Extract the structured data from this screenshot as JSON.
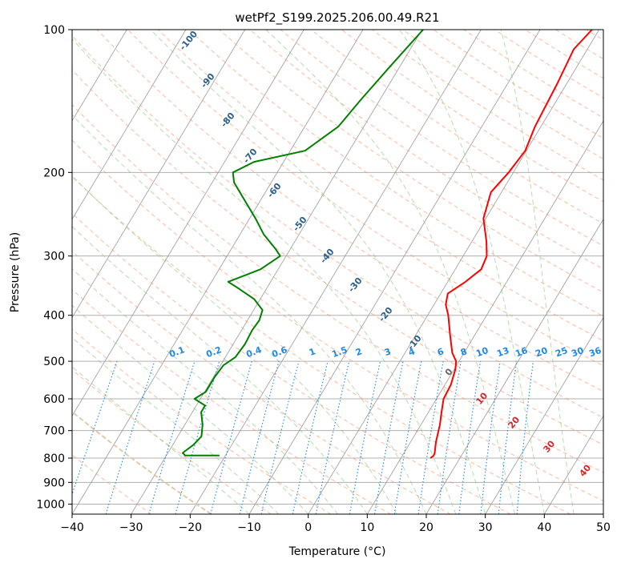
{
  "chart_data": {
    "type": "line",
    "title": "wetPf2_S199.2025.206.00.49.R21",
    "xlabel": "Temperature (°C)",
    "ylabel": "Pressure (hPa)",
    "xlim": [
      -40,
      50
    ],
    "ylim": [
      1050,
      100
    ],
    "y_scale": "log",
    "skew": true,
    "grid": true,
    "x_ticks": [
      "−40",
      "−30",
      "−20",
      "−10",
      "0",
      "10",
      "20",
      "30",
      "40",
      "50"
    ],
    "y_ticks": [
      "100",
      "200",
      "300",
      "400",
      "500",
      "600",
      "700",
      "800",
      "900",
      "1000"
    ],
    "colors": {
      "temperature": "#ff0000",
      "dewpoint": "#008000",
      "isotherm": "#999999",
      "dry_adiabat": "#ff8a5e",
      "moist_adiabat": "#7dbd6f",
      "mixing_ratio": "#1e88e5",
      "dry_label": "#d62728",
      "moist_label": "#2b5f8c",
      "zero_label": "#666666",
      "surface_adiabat": "#e0c8a8"
    },
    "series": [
      {
        "key": "temperature",
        "points": [
          [
            -1.2,
            100
          ],
          [
            -2.3,
            110
          ],
          [
            -1.6,
            130
          ],
          [
            -1.0,
            160
          ],
          [
            -0.2,
            180
          ],
          [
            -0.8,
            200
          ],
          [
            -1.8,
            220
          ],
          [
            -0.4,
            250
          ],
          [
            2.5,
            280
          ],
          [
            4.0,
            300
          ],
          [
            4.4,
            320
          ],
          [
            3.0,
            340
          ],
          [
            1.2,
            360
          ],
          [
            2.0,
            380
          ],
          [
            3.5,
            400
          ],
          [
            5.8,
            440
          ],
          [
            8.0,
            480
          ],
          [
            9.5,
            500
          ],
          [
            10.2,
            520
          ],
          [
            11.0,
            560
          ],
          [
            11.2,
            600
          ],
          [
            12.2,
            640
          ],
          [
            13.2,
            680
          ],
          [
            14.3,
            740
          ],
          [
            15.2,
            780
          ],
          [
            15.3,
            790
          ],
          [
            15.0,
            800
          ]
        ]
      },
      {
        "key": "dewpoint",
        "points": [
          [
            -29.8,
            100
          ],
          [
            -31.7,
            120
          ],
          [
            -33.2,
            140
          ],
          [
            -34.3,
            160
          ],
          [
            -37.5,
            180
          ],
          [
            -45.0,
            190
          ],
          [
            -47.5,
            200
          ],
          [
            -46.3,
            210
          ],
          [
            -42.5,
            230
          ],
          [
            -39.0,
            250
          ],
          [
            -36.0,
            270
          ],
          [
            -32.5,
            290
          ],
          [
            -31.0,
            300
          ],
          [
            -33.0,
            320
          ],
          [
            -37.2,
            340
          ],
          [
            -35.0,
            350
          ],
          [
            -31.0,
            370
          ],
          [
            -28.5,
            390
          ],
          [
            -28.0,
            410
          ],
          [
            -28.2,
            430
          ],
          [
            -28.0,
            460
          ],
          [
            -28.3,
            490
          ],
          [
            -29.5,
            510
          ],
          [
            -29.8,
            540
          ],
          [
            -29.8,
            580
          ],
          [
            -31.0,
            600
          ],
          [
            -28.5,
            620
          ],
          [
            -28.5,
            640
          ],
          [
            -27.0,
            680
          ],
          [
            -26.0,
            720
          ],
          [
            -26.5,
            750
          ],
          [
            -27.5,
            780
          ],
          [
            -26.8,
            790
          ],
          [
            -21.0,
            790
          ]
        ]
      }
    ],
    "dry_adiabat_labels": [
      "0",
      "10",
      "20",
      "30",
      "40"
    ],
    "moist_adiabat_labels": [
      "-100",
      "-90",
      "-80",
      "-70",
      "-60",
      "-50",
      "-40",
      "-30",
      "-20",
      "-10"
    ],
    "mixing_ratio_labels": [
      "0.1",
      "0.2",
      "0.4",
      "0.6",
      "1",
      "1.5",
      "2",
      "3",
      "4",
      "6",
      "8",
      "10",
      "13",
      "16",
      "20",
      "25",
      "30",
      "36"
    ]
  }
}
